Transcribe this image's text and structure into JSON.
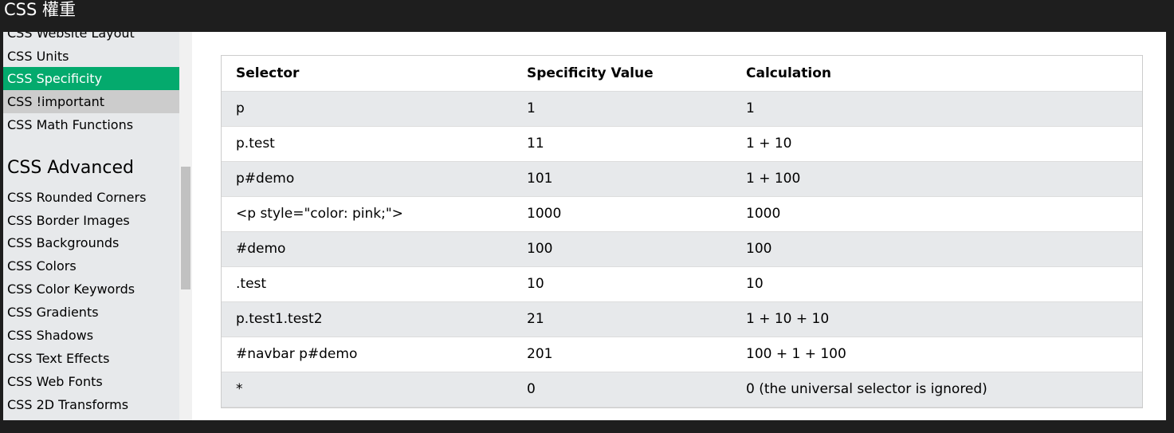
{
  "window": {
    "title": "CSS 權重"
  },
  "sidebar": {
    "items_top": [
      {
        "label": "CSS Website Layout",
        "state": "normal"
      },
      {
        "label": "CSS Units",
        "state": "normal"
      },
      {
        "label": "CSS Specificity",
        "state": "active"
      },
      {
        "label": "CSS !important",
        "state": "hover"
      },
      {
        "label": "CSS Math Functions",
        "state": "normal"
      }
    ],
    "heading": "CSS Advanced",
    "items_advanced": [
      {
        "label": "CSS Rounded Corners"
      },
      {
        "label": "CSS Border Images"
      },
      {
        "label": "CSS Backgrounds"
      },
      {
        "label": "CSS Colors"
      },
      {
        "label": "CSS Color Keywords"
      },
      {
        "label": "CSS Gradients"
      },
      {
        "label": "CSS Shadows"
      },
      {
        "label": "CSS Text Effects"
      },
      {
        "label": "CSS Web Fonts"
      },
      {
        "label": "CSS 2D Transforms"
      }
    ],
    "active_color": "#04aa6d"
  },
  "table": {
    "headers": [
      "Selector",
      "Specificity Value",
      "Calculation"
    ],
    "rows": [
      [
        "p",
        "1",
        "1"
      ],
      [
        "p.test",
        "11",
        "1 + 10"
      ],
      [
        "p#demo",
        "101",
        "1 + 100"
      ],
      [
        "<p style=\"color: pink;\">",
        "1000",
        "1000"
      ],
      [
        "#demo",
        "100",
        "100"
      ],
      [
        ".test",
        "10",
        "10"
      ],
      [
        "p.test1.test2",
        "21",
        "1 + 10 + 10"
      ],
      [
        "#navbar p#demo",
        "201",
        "100 + 1 + 100"
      ],
      [
        "*",
        "0",
        "0 (the universal selector is ignored)"
      ]
    ]
  }
}
